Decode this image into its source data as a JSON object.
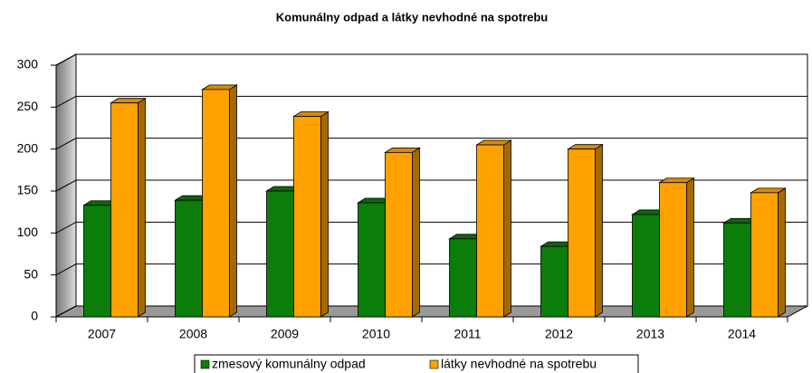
{
  "chart_data": {
    "type": "bar",
    "title": "Komunálny odpad a látky nevhodné na spotrebu",
    "categories": [
      "2007",
      "2008",
      "2009",
      "2010",
      "2011",
      "2012",
      "2013",
      "2014"
    ],
    "series": [
      {
        "name": "zmesový komunálny odpad",
        "color": "#0b7d0b",
        "values": [
          133,
          139,
          150,
          136,
          93,
          84,
          122,
          112
        ]
      },
      {
        "name": "látky nevhodné na spotrebu",
        "color": "#ffa200",
        "values": [
          255,
          271,
          239,
          196,
          205,
          200,
          160,
          148
        ]
      }
    ],
    "ylim": [
      0,
      300
    ],
    "yticks": [
      0,
      50,
      100,
      150,
      200,
      250,
      300
    ],
    "grid": true,
    "legend": "bottom"
  }
}
